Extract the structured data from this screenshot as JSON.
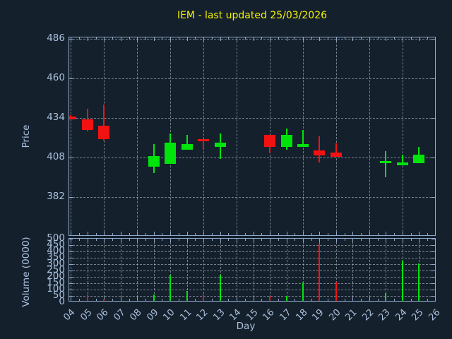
{
  "title": "IEM - last updated 25/03/2026",
  "colors": {
    "background": "#15202d",
    "axis": "#8ea9c8",
    "tick_text": "#a9c0dc",
    "grid": "#c6d0dc",
    "up": "#00e40c",
    "down": "#f21212",
    "title": "#f2f200"
  },
  "price_axis": {
    "label": "Price",
    "ticks": [
      382,
      408,
      434,
      460,
      486
    ],
    "ylim": [
      356,
      487
    ]
  },
  "volume_axis": {
    "label": "Volume (0000)",
    "ticks": [
      0,
      50,
      100,
      150,
      200,
      250,
      300,
      350,
      400,
      450,
      500
    ],
    "ylim": [
      0,
      500
    ]
  },
  "x_axis": {
    "label": "Day",
    "tick_labels": [
      "04",
      "05",
      "06",
      "07",
      "08",
      "09",
      "10",
      "11",
      "12",
      "13",
      "14",
      "15",
      "16",
      "17",
      "18",
      "19",
      "20",
      "21",
      "22",
      "23",
      "24",
      "25",
      "26"
    ],
    "xlim": [
      3.9,
      26.05
    ]
  },
  "chart_data": {
    "type": "candlestick_with_volume",
    "title": "IEM - last updated 25/03/2026",
    "xlabel": "Day",
    "price_ylabel": "Price",
    "volume_ylabel": "Volume (0000)",
    "grid": true,
    "candles": [
      {
        "day": 4,
        "open": 435,
        "high": 436,
        "low": 433,
        "close": 433,
        "volume": 0
      },
      {
        "day": 5,
        "open": 433,
        "high": 440,
        "low": 425,
        "close": 426,
        "volume": 60
      },
      {
        "day": 6,
        "open": 429,
        "high": 443,
        "low": 419,
        "close": 420,
        "volume": 25
      },
      {
        "day": 9,
        "open": 402,
        "high": 417,
        "low": 398,
        "close": 409,
        "volume": 60
      },
      {
        "day": 10,
        "open": 404,
        "high": 424,
        "low": 404,
        "close": 418,
        "volume": 215
      },
      {
        "day": 11,
        "open": 413,
        "high": 423,
        "low": 413,
        "close": 417,
        "volume": 90
      },
      {
        "day": 12,
        "open": 420,
        "high": 420,
        "low": 413,
        "close": 418.5,
        "volume": 60
      },
      {
        "day": 13,
        "open": 415,
        "high": 424,
        "low": 407,
        "close": 418,
        "volume": 215
      },
      {
        "day": 16,
        "open": 423,
        "high": 423,
        "low": 411,
        "close": 415,
        "volume": 50
      },
      {
        "day": 17,
        "open": 415,
        "high": 427,
        "low": 413,
        "close": 423,
        "volume": 50
      },
      {
        "day": 18,
        "open": 415,
        "high": 426,
        "low": 415,
        "close": 417,
        "volume": 155
      },
      {
        "day": 19,
        "open": 412.5,
        "high": 422,
        "low": 405,
        "close": 409.5,
        "volume": 455
      },
      {
        "day": 20,
        "open": 411.5,
        "high": 417.5,
        "low": 408.5,
        "close": 408.5,
        "volume": 160
      },
      {
        "day": 23,
        "open": 404.5,
        "high": 412,
        "low": 395,
        "close": 405.5,
        "volume": 70
      },
      {
        "day": 24,
        "open": 403,
        "high": 410,
        "low": 403,
        "close": 405,
        "volume": 330
      },
      {
        "day": 25,
        "open": 404.5,
        "high": 415,
        "low": 404.5,
        "close": 410,
        "volume": 305
      }
    ]
  }
}
